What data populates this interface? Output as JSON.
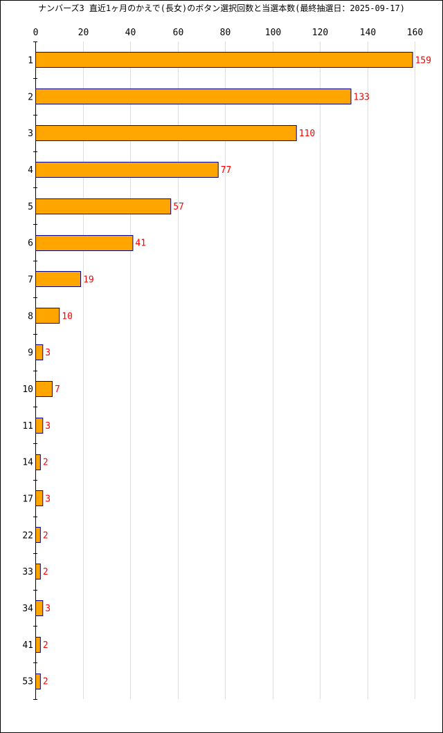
{
  "chart_data": {
    "type": "bar",
    "orientation": "horizontal",
    "title": "ナンバーズ3 直近1ヶ月のかえで(長女)のボタン選択回数と当選本数(最終抽選日：2025-09-17)",
    "categories": [
      "1",
      "2",
      "3",
      "4",
      "5",
      "6",
      "7",
      "8",
      "9",
      "10",
      "11",
      "14",
      "17",
      "22",
      "33",
      "34",
      "41",
      "53"
    ],
    "values": [
      159,
      133,
      110,
      77,
      57,
      41,
      19,
      10,
      3,
      7,
      3,
      2,
      3,
      2,
      2,
      3,
      2,
      2
    ],
    "xlim": [
      0,
      160
    ],
    "xticks": [
      "0",
      "20",
      "40",
      "60",
      "80",
      "100",
      "120",
      "140",
      "160"
    ],
    "xlabel": "",
    "ylabel": "",
    "grid": "vertical",
    "legend": "none",
    "colors": {
      "bar_fill": "#ffa500",
      "bar_border": "#00008b",
      "value_label": "#ff0000",
      "grid": "#dddddd",
      "axis": "#000000"
    }
  }
}
